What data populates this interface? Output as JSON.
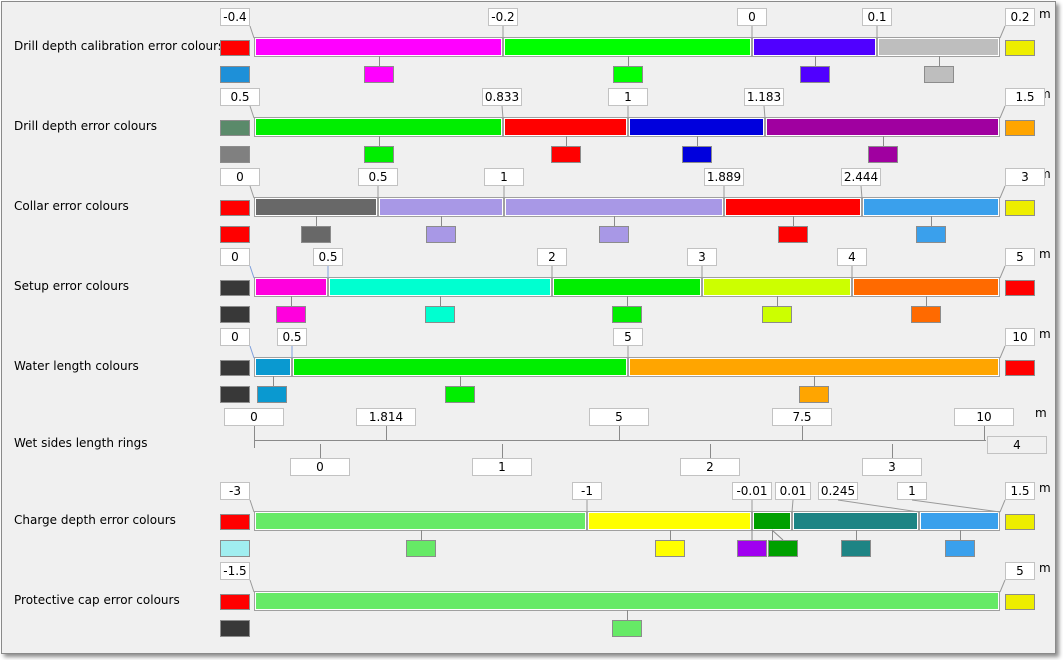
{
  "unit": "m",
  "rows": [
    {
      "label": "Drill depth calibration error colours",
      "min_color": "#ff0000",
      "max_color": "#eeee00",
      "extra_color": "#1e90d8",
      "thresholds": [
        {
          "label": "-0.4",
          "value": -0.4
        },
        {
          "label": "-0.2",
          "value": -0.2
        },
        {
          "label": "0",
          "value": 0
        },
        {
          "label": "0.1",
          "value": 0.1
        },
        {
          "label": "0.2",
          "value": 0.2
        }
      ],
      "segments": [
        "#ff00ff",
        "#00ff00",
        "#5000ff",
        "#bebebe"
      ]
    },
    {
      "label": "Drill depth error colours",
      "min_color": "#5a8a6a",
      "max_color": "#ffa500",
      "extra_color": "#808080",
      "thresholds": [
        {
          "label": "0.5",
          "value": 0.5
        },
        {
          "label": "0.833",
          "value": 0.833
        },
        {
          "label": "1",
          "value": 1
        },
        {
          "label": "1.183",
          "value": 1.183
        },
        {
          "label": "1.5",
          "value": 1.5
        }
      ],
      "segments": [
        "#00ee00",
        "#ff0000",
        "#0000dd",
        "#a000a0"
      ]
    },
    {
      "label": "Collar error colours",
      "min_color": "#ff0000",
      "max_color": "#eeee00",
      "extra_color": "",
      "thresholds": [
        {
          "label": "0",
          "value": 0
        },
        {
          "label": "0.5",
          "value": 0.5
        },
        {
          "label": "1",
          "value": 1
        },
        {
          "label": "1.889",
          "value": 1.889
        },
        {
          "label": "2.444",
          "value": 2.444
        },
        {
          "label": "3",
          "value": 3
        }
      ],
      "segments": [
        "#686868",
        "#a898e6",
        "#a898e6",
        "#ff0000",
        "#3aa0ec"
      ]
    },
    {
      "label": "Setup error colours",
      "min_color": "#383838",
      "max_color": "#ff0000",
      "extra_color": "",
      "thresholds": [
        {
          "label": "0",
          "value": 0
        },
        {
          "label": "0.5",
          "value": 0.5
        },
        {
          "label": "2",
          "value": 2
        },
        {
          "label": "3",
          "value": 3
        },
        {
          "label": "4",
          "value": 4
        },
        {
          "label": "5",
          "value": 5
        }
      ],
      "segments": [
        "#ff00dd",
        "#00ffd0",
        "#00ee00",
        "#ccff00",
        "#ff6a00"
      ]
    },
    {
      "label": "Water length colours",
      "min_color": "#383838",
      "max_color": "#ff0000",
      "extra_color": "",
      "thresholds": [
        {
          "label": "0",
          "value": 0
        },
        {
          "label": "0.5",
          "value": 0.5
        },
        {
          "label": "5",
          "value": 5
        },
        {
          "label": "10",
          "value": 10
        }
      ],
      "segments": [
        "#0a99d0",
        "#00ee00",
        "#ffa500"
      ]
    },
    {
      "label": "Wet sides length rings",
      "thresholds": [
        {
          "label": "0",
          "value": 0
        },
        {
          "label": "1.814",
          "value": 1.814
        },
        {
          "label": "5",
          "value": 5
        },
        {
          "label": "7.5",
          "value": 7.5
        },
        {
          "label": "10",
          "value": 10
        }
      ],
      "rings": [
        "0",
        "1",
        "2",
        "3",
        "4"
      ]
    },
    {
      "label": "Charge depth error colours",
      "min_color": "#ff0000",
      "max_color": "#eeee00",
      "extra_color": "#a0eef0",
      "thresholds": [
        {
          "label": "-3",
          "value": -3
        },
        {
          "label": "-1",
          "value": -1
        },
        {
          "label": "-0.01",
          "value": -0.01
        },
        {
          "label": "0.01",
          "value": 0.01
        },
        {
          "label": "0.245",
          "value": 0.245
        },
        {
          "label": "1",
          "value": 1
        },
        {
          "label": "1.5",
          "value": 1.5
        }
      ],
      "segments": [
        "#66ea66",
        "#ffff00",
        "#00a000",
        "#1e8484",
        "#3aa0ec"
      ],
      "special_color": "#a000f0"
    },
    {
      "label": "Protective cap error colours",
      "min_color": "#ff0000",
      "max_color": "#eeee00",
      "extra_color": "#383838",
      "thresholds": [
        {
          "label": "-1.5",
          "value": -1.5
        },
        {
          "label": "5",
          "value": 5
        }
      ],
      "segments": [
        "#66ea66"
      ]
    }
  ]
}
